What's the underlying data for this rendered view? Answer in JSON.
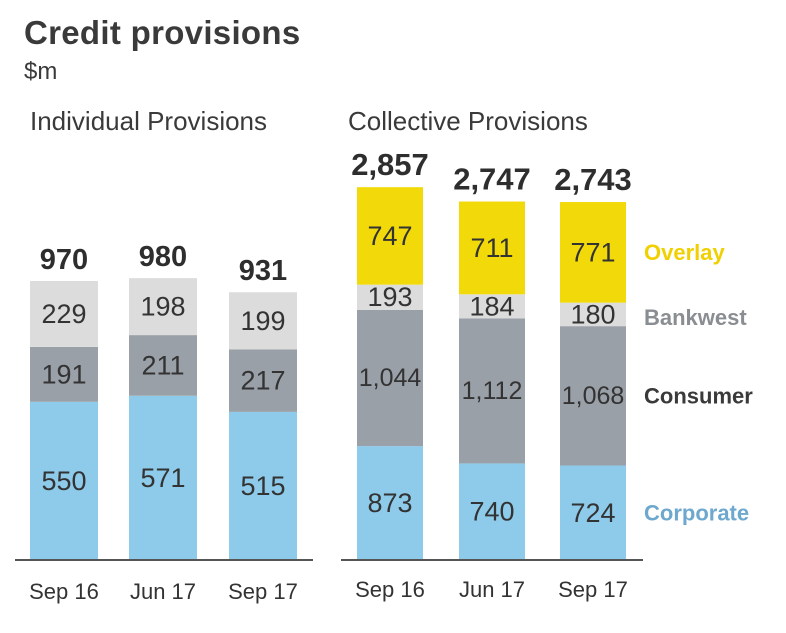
{
  "title": "Credit provisions",
  "unit": "$m",
  "colors": {
    "Corporate": "#8ecbea",
    "Consumer": "#9aa0a8",
    "Bankwest": "#dcdcdc",
    "Overlay": "#f2da0a",
    "legend_Overlay": "#f0d000",
    "legend_Bankwest": "#8a8d91",
    "legend_Consumer": "#3a3a3a",
    "legend_Corporate": "#6ea8cf"
  },
  "chart_data": [
    {
      "type": "bar",
      "stacked": true,
      "title": "Individual Provisions",
      "categories": [
        "Sep 16",
        "Jun 17",
        "Sep 17"
      ],
      "series": [
        {
          "name": "Corporate",
          "values": [
            550,
            571,
            515
          ]
        },
        {
          "name": "Consumer",
          "values": [
            191,
            211,
            217
          ]
        },
        {
          "name": "Bankwest",
          "values": [
            229,
            198,
            199
          ]
        }
      ],
      "value_labels": [
        [
          "550",
          "571",
          "515"
        ],
        [
          "191",
          "211",
          "217"
        ],
        [
          "229",
          "198",
          "199"
        ]
      ],
      "totals": [
        970,
        980,
        931
      ],
      "total_labels": [
        "970",
        "980",
        "931"
      ]
    },
    {
      "type": "bar",
      "stacked": true,
      "title": "Collective Provisions",
      "categories": [
        "Sep 16",
        "Jun 17",
        "Sep 17"
      ],
      "series": [
        {
          "name": "Corporate",
          "values": [
            873,
            740,
            724
          ]
        },
        {
          "name": "Consumer",
          "values": [
            1044,
            1112,
            1068
          ]
        },
        {
          "name": "Bankwest",
          "values": [
            193,
            184,
            180
          ]
        },
        {
          "name": "Overlay",
          "values": [
            747,
            711,
            771
          ]
        }
      ],
      "value_labels": [
        [
          "873",
          "740",
          "724"
        ],
        [
          "1,044",
          "1,112",
          "1,068"
        ],
        [
          "193",
          "184",
          "180"
        ],
        [
          "747",
          "711",
          "771"
        ]
      ],
      "totals": [
        2857,
        2747,
        2743
      ],
      "total_labels": [
        "2,857",
        "2,747",
        "2,743"
      ],
      "legend": [
        "Overlay",
        "Bankwest",
        "Consumer",
        "Corporate"
      ]
    }
  ]
}
